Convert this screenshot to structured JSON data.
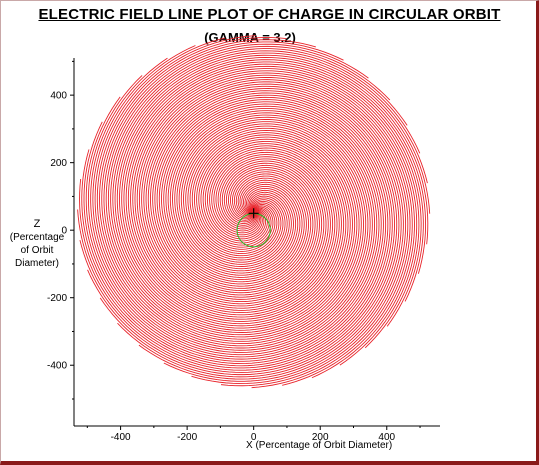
{
  "chart_data": {
    "type": "line",
    "title": "ELECTRIC FIELD LINE PLOT OF CHARGE IN CIRCULAR ORBIT",
    "subtitle": "(GAMMA = 3.2)",
    "ylabel_lines": [
      "Z",
      "(Percentage",
      "of Orbit",
      "Diameter)"
    ],
    "xlabel": "X  (Percentage of Orbit Diameter)",
    "xlim": [
      -540,
      560
    ],
    "ylim": [
      -580,
      510
    ],
    "xticks": [
      -400,
      -200,
      0,
      200,
      400
    ],
    "yticks": [
      -400,
      -200,
      0,
      200,
      400
    ],
    "xtick_labels": [
      "-400",
      "-200",
      "0",
      "200",
      "400"
    ],
    "ytick_labels": [
      "-400",
      "-200",
      "0",
      "200",
      "400"
    ],
    "grid": false,
    "field_lines": {
      "color": "#e8232a",
      "count": 36,
      "spiral_center": [
        0,
        55
      ],
      "outer_radius": 530,
      "turns": 2.2
    },
    "orbit": {
      "color": "#22bb22",
      "center": [
        0,
        0
      ],
      "radius": 50
    },
    "charge": {
      "position": [
        0,
        50
      ],
      "marker": "+"
    }
  }
}
